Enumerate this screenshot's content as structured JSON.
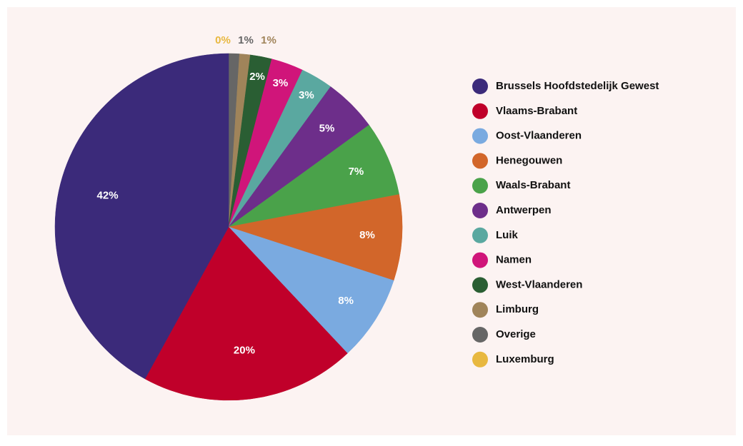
{
  "chart_data": {
    "type": "pie",
    "categories": [
      "Brussels Hoofdstedelijk Gewest",
      "Vlaams-Brabant",
      "Oost-Vlaanderen",
      "Henegouwen",
      "Waals-Brabant",
      "Antwerpen",
      "Luik",
      "Namen",
      "West-Vlaanderen",
      "Limburg",
      "Overige",
      "Luxemburg"
    ],
    "values": [
      42,
      20,
      8,
      8,
      7,
      5,
      3,
      3,
      2,
      1,
      1,
      0
    ],
    "value_labels": [
      "42%",
      "20%",
      "8%",
      "8%",
      "7%",
      "5%",
      "3%",
      "3%",
      "2%",
      "1%",
      "1%",
      "0%"
    ],
    "colors": [
      "#3b2a7a",
      "#c0002a",
      "#7aaae0",
      "#d2662a",
      "#4aa24a",
      "#6d2e8a",
      "#5aa8a0",
      "#d0157a",
      "#2a5e33",
      "#a0845a",
      "#666666",
      "#e8b840"
    ],
    "legend": "right"
  }
}
